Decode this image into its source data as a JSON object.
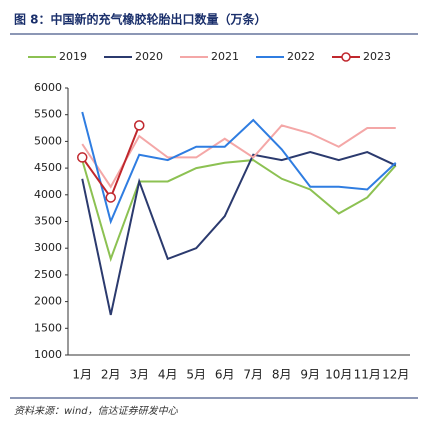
{
  "chart_data": {
    "type": "line",
    "title": "图 8：中国新的充气橡胶轮胎出口数量（万条）",
    "source": "资料来源：wind，信达证券研发中心",
    "categories": [
      "1月",
      "2月",
      "3月",
      "4月",
      "5月",
      "6月",
      "7月",
      "8月",
      "9月",
      "10月",
      "11月",
      "12月"
    ],
    "series": [
      {
        "name": "2019",
        "color": "#8cc152",
        "values": [
          4650,
          2800,
          4250,
          4250,
          4500,
          4600,
          4650,
          4300,
          4100,
          3650,
          3950,
          4550
        ]
      },
      {
        "name": "2020",
        "color": "#2b3a6e",
        "values": [
          4300,
          1750,
          4250,
          2800,
          3000,
          3600,
          4750,
          4650,
          4800,
          4650,
          4800,
          4550
        ]
      },
      {
        "name": "2021",
        "color": "#f4a7a7",
        "values": [
          4950,
          4150,
          5100,
          4700,
          4700,
          5050,
          4700,
          5300,
          5150,
          4900,
          5250,
          5250
        ]
      },
      {
        "name": "2022",
        "color": "#2f7de1",
        "values": [
          5550,
          3500,
          4750,
          4650,
          4900,
          4900,
          5400,
          4850,
          4150,
          4150,
          4100,
          4600
        ]
      },
      {
        "name": "2023",
        "color": "#c0272d",
        "markers": true,
        "values": [
          4700,
          3950,
          5300,
          null,
          null,
          null,
          null,
          null,
          null,
          null,
          null,
          null
        ]
      }
    ],
    "ylim": [
      1000,
      6000
    ],
    "yticks": [
      1000,
      1500,
      2000,
      2500,
      3000,
      3500,
      4000,
      4500,
      5000,
      5500,
      6000
    ]
  }
}
